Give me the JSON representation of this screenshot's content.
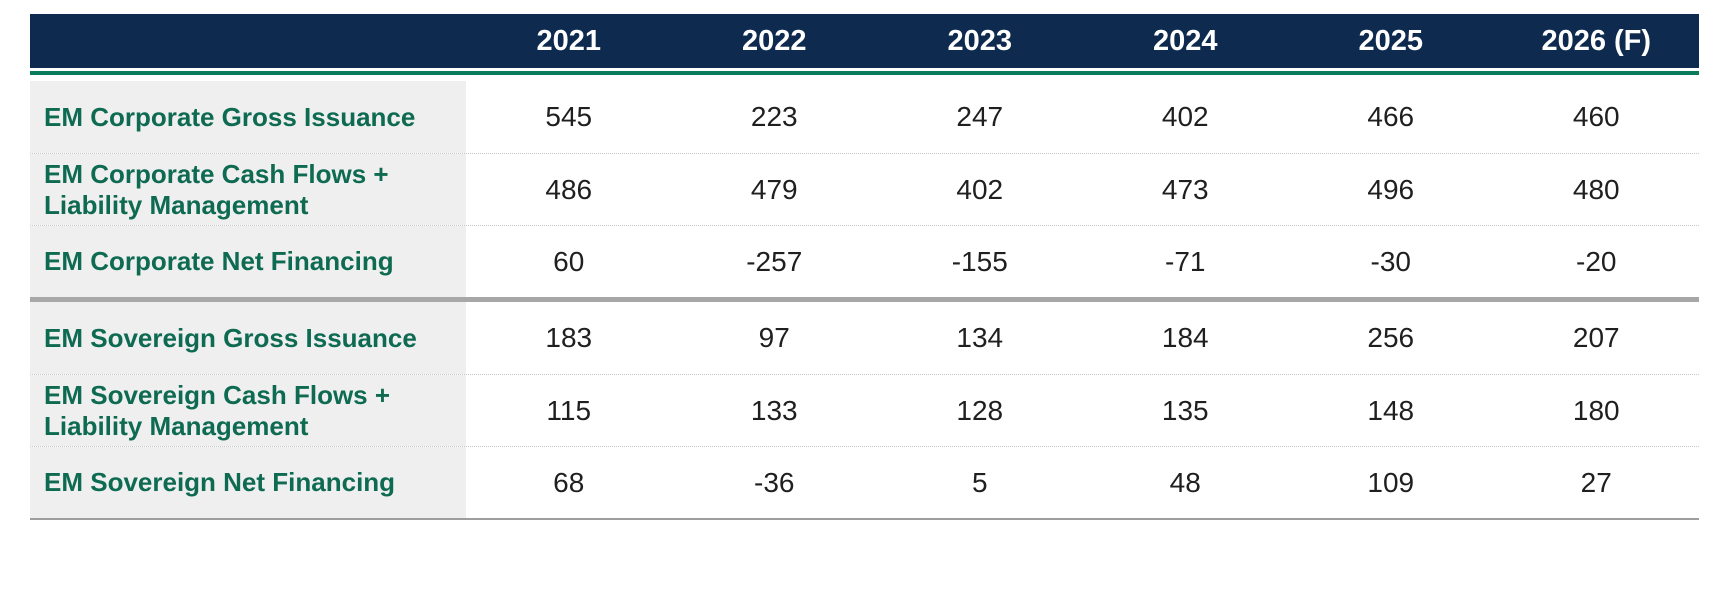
{
  "colors": {
    "header_bg": "#0E2B4F",
    "header_text": "#FFFFFF",
    "accent_green": "#0B7B5B",
    "label_text": "#0E6B51",
    "label_col_bg": "#EFEFEF",
    "number_text": "#1F1F1F",
    "row_separator": "#C9C9C9",
    "section_divider": "#A7A7A7",
    "bottom_line": "#9E9E9E"
  },
  "chart_data": {
    "type": "table",
    "columns": [
      "",
      "2021",
      "2022",
      "2023",
      "2024",
      "2025",
      "2026 (F)"
    ],
    "rows": [
      {
        "label": "EM Corporate Gross Issuance",
        "values": [
          545,
          223,
          247,
          402,
          466,
          460
        ]
      },
      {
        "label": "EM Corporate Cash Flows + Liability Management",
        "values": [
          486,
          479,
          402,
          473,
          496,
          480
        ]
      },
      {
        "label": "EM Corporate Net Financing",
        "values": [
          60,
          -257,
          -155,
          -71,
          -30,
          -20
        ]
      },
      {
        "label": "EM Sovereign Gross Issuance",
        "values": [
          183,
          97,
          134,
          184,
          256,
          207
        ]
      },
      {
        "label": "EM Sovereign Cash Flows + Liability Management",
        "values": [
          115,
          133,
          128,
          135,
          148,
          180
        ]
      },
      {
        "label": "EM Sovereign Net Financing",
        "values": [
          68,
          -36,
          5,
          48,
          109,
          27
        ]
      }
    ],
    "layout": {
      "section_break_after_row_index": 2,
      "header_style": "navy-bar-with-green-underline",
      "label_column_background": true,
      "values_alignment": "center"
    }
  }
}
